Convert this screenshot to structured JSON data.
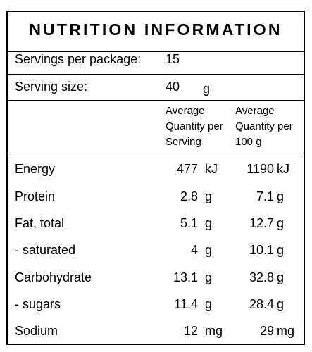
{
  "panel": {
    "title": "NUTRITION INFORMATION"
  },
  "servings": {
    "per_package_label": "Servings per package:",
    "per_package_value": "15",
    "size_label": "Serving size:",
    "size_value": "40",
    "size_unit": "g"
  },
  "columns": {
    "per_serving": [
      "Average",
      "Quantity per",
      "Serving"
    ],
    "per_100g": [
      "Average",
      "Quantity per",
      "100 g"
    ]
  },
  "rows": [
    {
      "name": "Energy",
      "serving": "477",
      "serving_unit": "kJ",
      "per100": "1190",
      "per100_unit": "kJ"
    },
    {
      "name": "Protein",
      "serving": "2.8",
      "serving_unit": "g",
      "per100": "7.1",
      "per100_unit": "g"
    },
    {
      "name": "Fat, total",
      "serving": "5.1",
      "serving_unit": "g",
      "per100": "12.7",
      "per100_unit": "g"
    },
    {
      "name": "- saturated",
      "serving": "4",
      "serving_unit": "g",
      "per100": "10.1",
      "per100_unit": "g"
    },
    {
      "name": "Carbohydrate",
      "serving": "13.1",
      "serving_unit": "g",
      "per100": "32.8",
      "per100_unit": "g"
    },
    {
      "name": "- sugars",
      "serving": "11.4",
      "serving_unit": "g",
      "per100": "28.4",
      "per100_unit": "g"
    },
    {
      "name": "Sodium",
      "serving": "12",
      "serving_unit": "mg",
      "per100": "29",
      "per100_unit": "mg"
    }
  ]
}
